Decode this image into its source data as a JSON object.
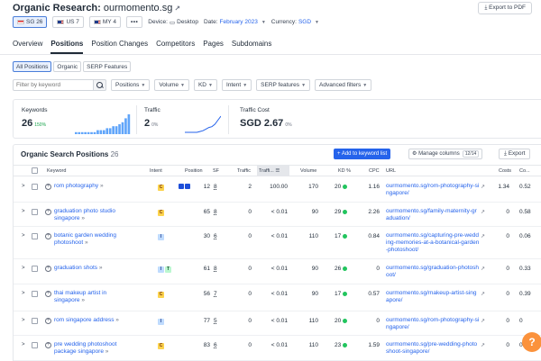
{
  "header": {
    "title": "Organic Research:",
    "domain": "ourmomento.sg",
    "export_label": "Export to PDF"
  },
  "databases": [
    {
      "flag": "sg",
      "label": "SG 26"
    },
    {
      "flag": "us",
      "label": "US 7"
    },
    {
      "flag": "my",
      "label": "MY 4"
    }
  ],
  "more_label": "•••",
  "device": {
    "label": "Device:",
    "value": "Desktop"
  },
  "date": {
    "label": "Date:",
    "value": "February 2023"
  },
  "currency": {
    "label": "Currency:",
    "value": "SGD"
  },
  "tabs": [
    "Overview",
    "Positions",
    "Position Changes",
    "Competitors",
    "Pages",
    "Subdomains"
  ],
  "active_tab": "Positions",
  "subtabs": [
    "All Positions",
    "Organic",
    "SERP Features"
  ],
  "filters": {
    "search_placeholder": "Filter by keyword",
    "dropdowns": [
      "Positions",
      "Volume",
      "KD",
      "Intent",
      "SERP features",
      "Advanced filters"
    ]
  },
  "metrics": {
    "keywords": {
      "label": "Keywords",
      "value": "26",
      "change": "150%"
    },
    "traffic": {
      "label": "Traffic",
      "value": "2",
      "change": "0%"
    },
    "traffic_cost": {
      "label": "Traffic Cost",
      "value": "SGD 2.67",
      "change": "0%"
    },
    "keywords_trend": [
      1,
      1,
      1,
      1,
      1,
      1,
      1,
      2,
      2,
      2,
      3,
      3,
      4,
      4,
      5,
      6,
      8,
      10
    ],
    "traffic_trend": [
      0,
      0,
      0,
      0,
      0,
      0.1,
      0.2,
      0.4,
      0.6,
      0.7,
      1.0,
      1.5,
      2.0
    ]
  },
  "table": {
    "title": "Organic Search Positions",
    "count": "26",
    "add_label": "+ Add to keyword list",
    "manage_label": "Manage columns",
    "manage_count": "12/14",
    "export_label": "Export",
    "columns": {
      "keyword": "Keyword",
      "intent": "Intent",
      "position": "Position",
      "sf": "SF",
      "traffic": "Traffic",
      "traffic_pct": "Traffi...",
      "volume": "Volume",
      "kd": "KD %",
      "cpc": "CPC",
      "url": "URL",
      "costs": "Costs",
      "co": "Co..."
    },
    "rows": [
      {
        "keyword": "rom photography",
        "intent": [
          "C"
        ],
        "serp": 2,
        "position": "12",
        "sf": "8",
        "traffic": "2",
        "traffic_pct": "100.00",
        "volume": "170",
        "kd": "20",
        "kd_color": "#22c55e",
        "cpc": "1.16",
        "url": "ourmomento.sg/rom-photography-singapore/",
        "costs": "1.34",
        "co": "0.52"
      },
      {
        "keyword": "graduation photo studio singapore",
        "intent": [
          "C"
        ],
        "serp": 0,
        "position": "65",
        "sf": "8",
        "traffic": "0",
        "traffic_pct": "< 0.01",
        "volume": "90",
        "kd": "29",
        "kd_color": "#22c55e",
        "cpc": "2.26",
        "url": "ourmomento.sg/family-maternity-graduation/",
        "costs": "0",
        "co": "0.58"
      },
      {
        "keyword": "botanic garden wedding photoshoot",
        "intent": [
          "I"
        ],
        "serp": 0,
        "position": "30",
        "sf": "6",
        "traffic": "0",
        "traffic_pct": "< 0.01",
        "volume": "110",
        "kd": "17",
        "kd_color": "#22c55e",
        "cpc": "0.84",
        "url": "ourmomento.sg/capturing-pre-wedding-memories-at-a-botanical-garden-photoshoot/",
        "costs": "0",
        "co": "0.06"
      },
      {
        "keyword": "graduation shots",
        "intent": [
          "I",
          "T"
        ],
        "serp": 0,
        "position": "61",
        "sf": "8",
        "traffic": "0",
        "traffic_pct": "< 0.01",
        "volume": "90",
        "kd": "26",
        "kd_color": "#22c55e",
        "cpc": "0",
        "url": "ourmomento.sg/graduation-photoshoot/",
        "costs": "0",
        "co": "0.33"
      },
      {
        "keyword": "thai makeup artist in singapore",
        "intent": [
          "C"
        ],
        "serp": 0,
        "position": "56",
        "sf": "7",
        "traffic": "0",
        "traffic_pct": "< 0.01",
        "volume": "90",
        "kd": "17",
        "kd_color": "#22c55e",
        "cpc": "0.57",
        "url": "ourmomento.sg/makeup-artist-singapore/",
        "costs": "0",
        "co": "0.39"
      },
      {
        "keyword": "rom singapore address",
        "intent": [
          "I"
        ],
        "serp": 0,
        "position": "77",
        "sf": "5",
        "traffic": "0",
        "traffic_pct": "< 0.01",
        "volume": "110",
        "kd": "20",
        "kd_color": "#22c55e",
        "cpc": "0",
        "url": "ourmomento.sg/rom-photography-singapore/",
        "costs": "0",
        "co": "0"
      },
      {
        "keyword": "pre wedding photoshoot package singapore",
        "intent": [
          "C"
        ],
        "serp": 0,
        "position": "83",
        "sf": "6",
        "traffic": "0",
        "traffic_pct": "< 0.01",
        "volume": "110",
        "kd": "23",
        "kd_color": "#22c55e",
        "cpc": "1.59",
        "url": "ourmomento.sg/pre-wedding-photoshoot-singapore/",
        "costs": "0",
        "co": "0.43"
      }
    ]
  },
  "help_label": "?",
  "colors": {
    "accent": "#2563eb",
    "help": "#fb923c",
    "spark": "#60a5fa"
  }
}
